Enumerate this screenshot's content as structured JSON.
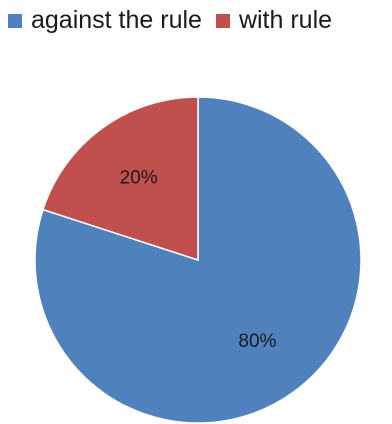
{
  "chart_data": {
    "type": "pie",
    "title": "",
    "legend_position": "top",
    "slices": [
      {
        "name": "against the rule",
        "value": 80,
        "label": "80%",
        "color": "#4F81BD"
      },
      {
        "name": "with rule",
        "value": 20,
        "label": "20%",
        "color": "#C0504D"
      }
    ]
  }
}
